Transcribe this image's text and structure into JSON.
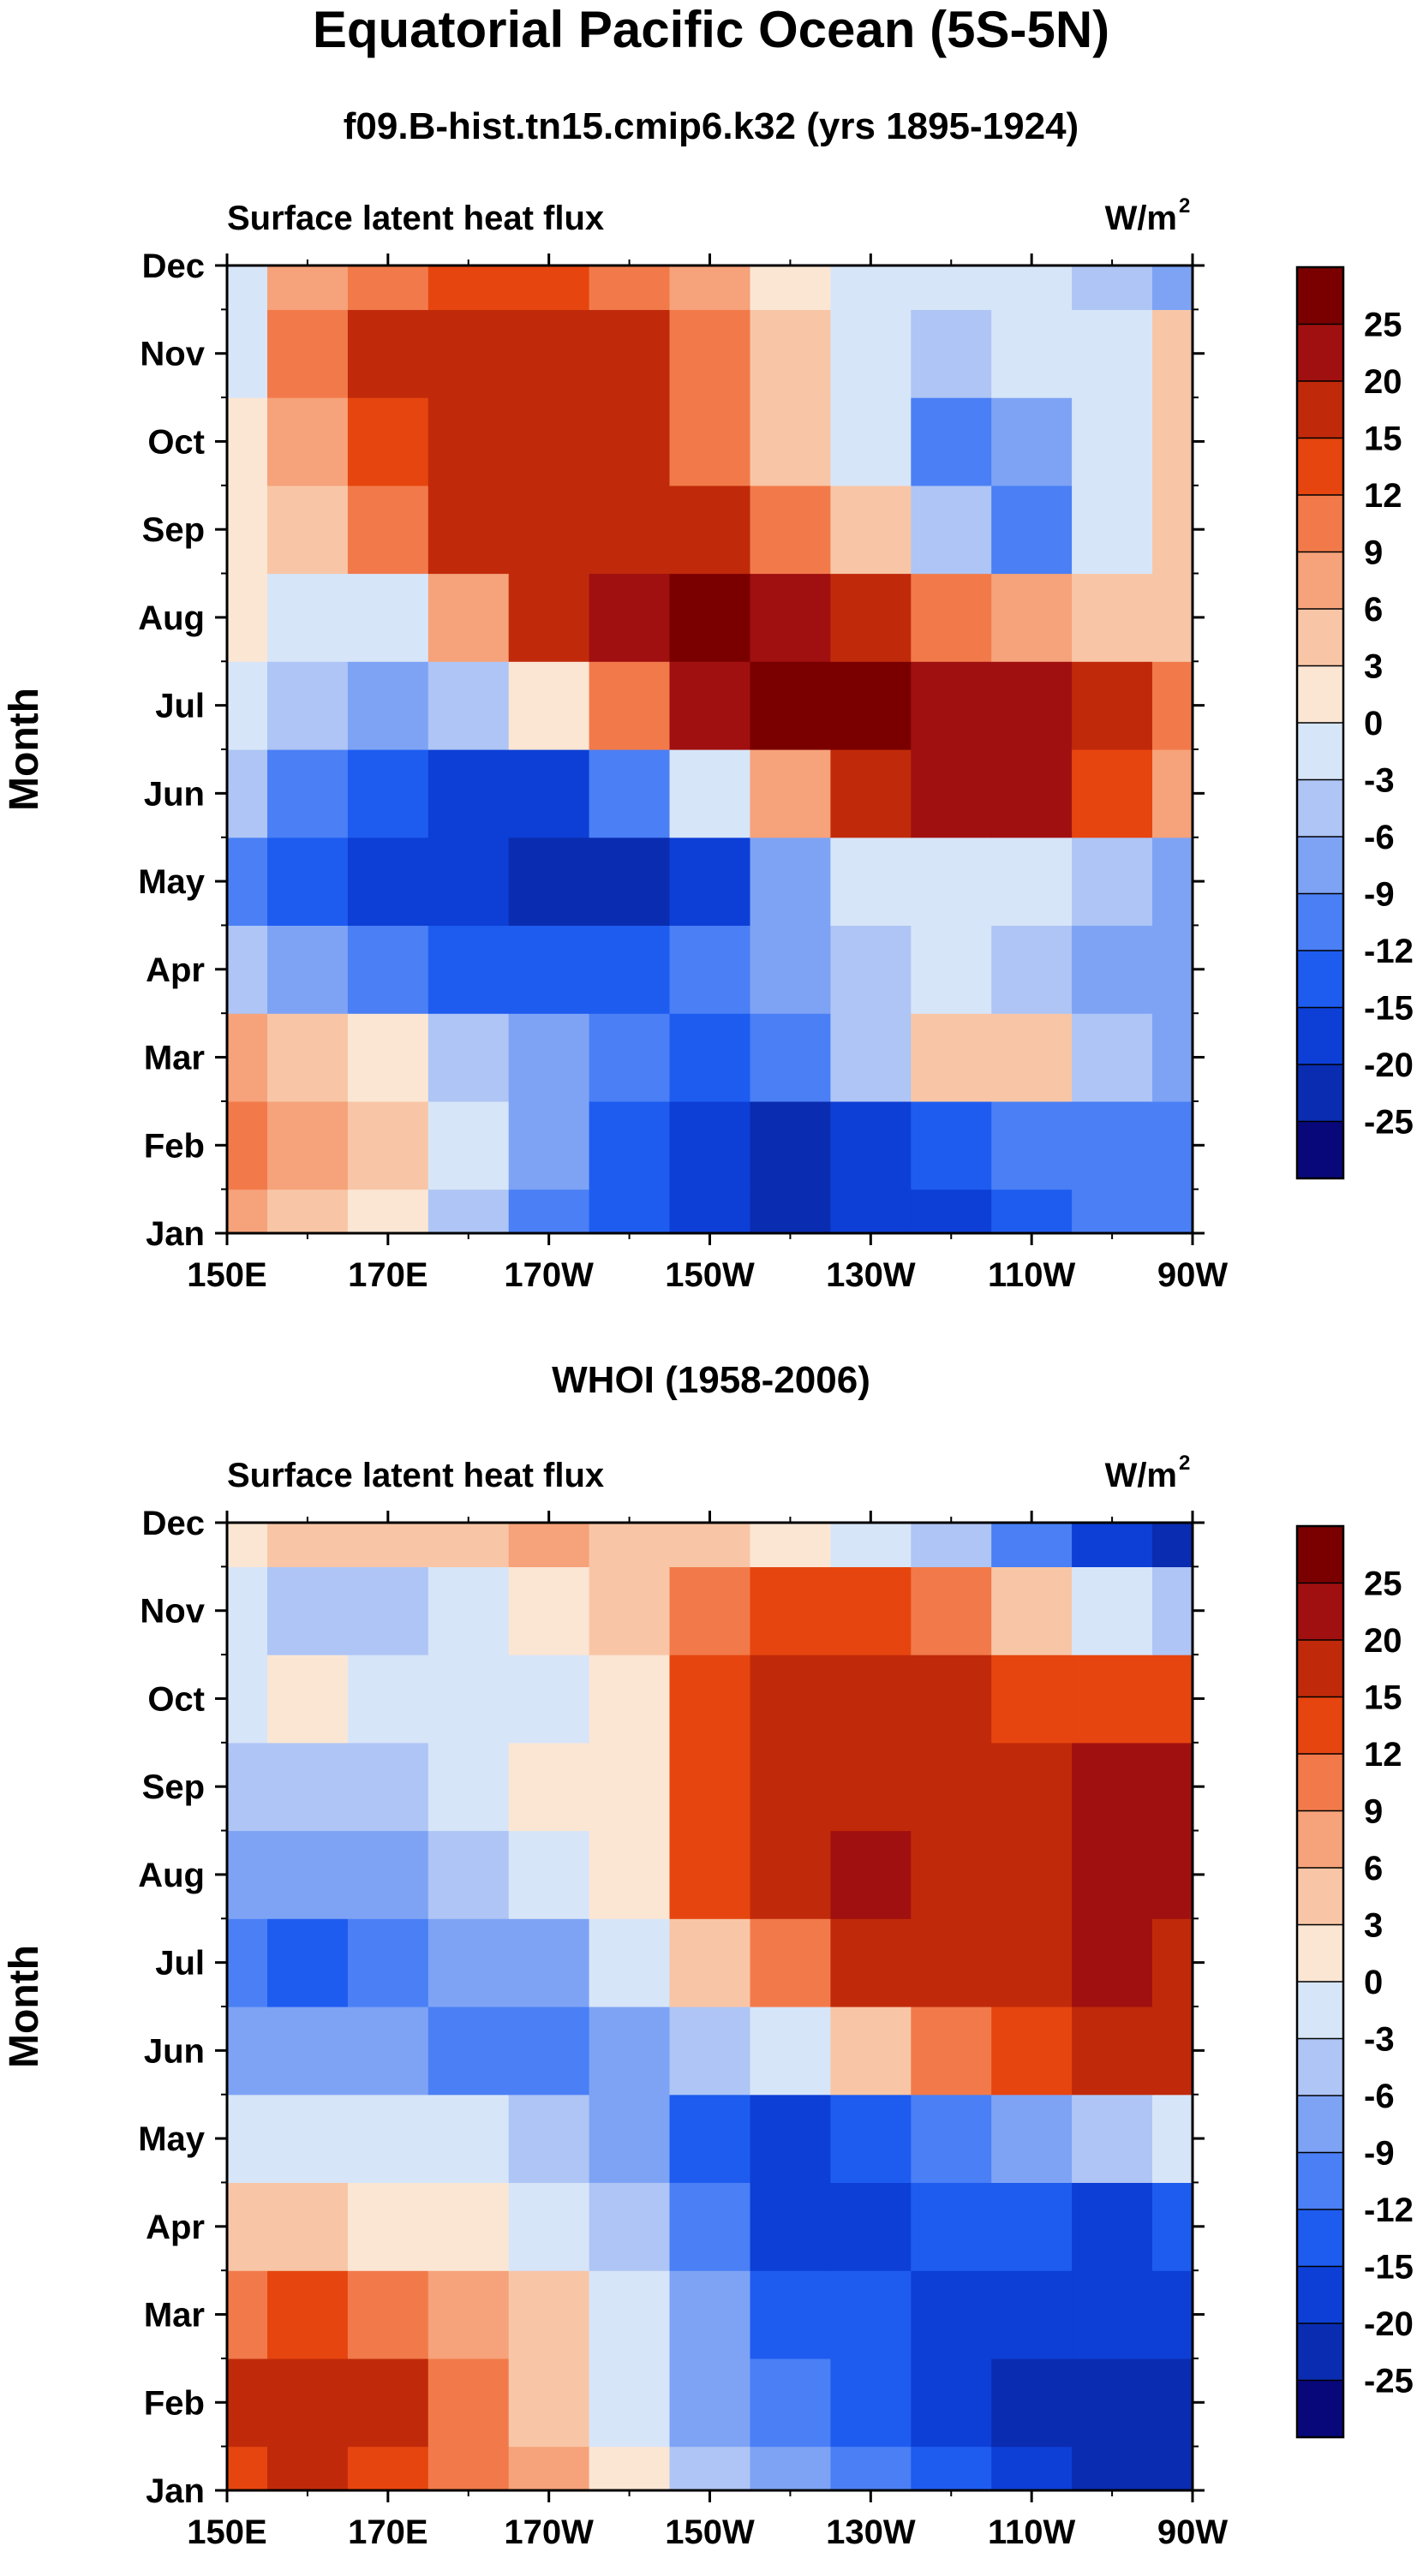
{
  "figure": {
    "title": "Equatorial Pacific Ocean (5S-5N)"
  },
  "colorbar": {
    "levels": [
      -25,
      -20,
      -15,
      -12,
      -9,
      -6,
      -3,
      0,
      3,
      6,
      9,
      12,
      15,
      20,
      25
    ],
    "labels": [
      "25",
      "20",
      "15",
      "12",
      "9",
      "6",
      "3",
      "0",
      "-3",
      "-6",
      "-9",
      "-12",
      "-15",
      "-20",
      "-25"
    ],
    "colors": [
      "#08087a",
      "#0a2cb0",
      "#0d3fd6",
      "#1e5cf0",
      "#4a7ff5",
      "#7ea3f5",
      "#aec5f5",
      "#d7e5f8",
      "#fbe6d4",
      "#f8c6a6",
      "#f6a27a",
      "#f27a4a",
      "#e6450f",
      "#c02a0a",
      "#a01010",
      "#7a0000"
    ]
  },
  "chart_data": [
    {
      "type": "heatmap",
      "title": "f09.B-hist.tn15.cmip6.k32 (yrs 1895-1924)",
      "left_label": "Surface latent heat flux",
      "units_label": "W/m",
      "units_superscript": "2",
      "ylabel": "Month",
      "xlabel": "",
      "x_ticks": [
        "150E",
        "170E",
        "170W",
        "150W",
        "130W",
        "110W",
        "90W"
      ],
      "x_tick_values": [
        150,
        170,
        190,
        210,
        230,
        250,
        270
      ],
      "xlim": [
        150,
        270
      ],
      "y_ticks": [
        "Jan",
        "Feb",
        "Mar",
        "Apr",
        "May",
        "Jun",
        "Jul",
        "Aug",
        "Sep",
        "Oct",
        "Nov",
        "Dec"
      ],
      "x_grid": [
        150,
        160,
        170,
        180,
        190,
        200,
        210,
        220,
        230,
        240,
        250,
        260,
        270
      ],
      "values": [
        [
          6,
          4,
          0,
          -6,
          -12,
          -15,
          -20,
          -22,
          -20,
          -18,
          -15,
          -12,
          -10
        ],
        [
          9,
          6,
          3,
          -3,
          -9,
          -15,
          -20,
          -24,
          -20,
          -15,
          -12,
          -12,
          -10
        ],
        [
          6,
          3,
          0,
          -6,
          -9,
          -12,
          -15,
          -12,
          -6,
          3,
          3,
          -6,
          -9
        ],
        [
          -6,
          -9,
          -12,
          -15,
          -15,
          -15,
          -12,
          -9,
          -6,
          -3,
          -6,
          -9,
          -9
        ],
        [
          -12,
          -15,
          -18,
          -20,
          -24,
          -22,
          -18,
          -9,
          -3,
          -3,
          -3,
          -6,
          -9
        ],
        [
          -6,
          -12,
          -15,
          -18,
          -18,
          -12,
          -3,
          6,
          15,
          20,
          22,
          12,
          6
        ],
        [
          -3,
          -6,
          -9,
          -6,
          0,
          9,
          20,
          25,
          26,
          24,
          20,
          15,
          9
        ],
        [
          0,
          -3,
          -3,
          6,
          15,
          24,
          26,
          22,
          15,
          9,
          6,
          3,
          3
        ],
        [
          0,
          3,
          9,
          15,
          18,
          18,
          15,
          9,
          3,
          -6,
          -12,
          -3,
          3
        ],
        [
          0,
          6,
          12,
          15,
          18,
          15,
          9,
          3,
          -3,
          -12,
          -9,
          -3,
          3
        ],
        [
          -3,
          9,
          15,
          18,
          18,
          15,
          9,
          3,
          -3,
          -6,
          -3,
          -3,
          3
        ],
        [
          -3,
          6,
          9,
          12,
          12,
          9,
          6,
          0,
          -3,
          -3,
          -3,
          -6,
          -9
        ]
      ]
    },
    {
      "type": "heatmap",
      "title": "WHOI (1958-2006)",
      "left_label": "Surface latent heat flux",
      "units_label": "W/m",
      "units_superscript": "2",
      "ylabel": "Month",
      "xlabel": "",
      "x_ticks": [
        "150E",
        "170E",
        "170W",
        "150W",
        "130W",
        "110W",
        "90W"
      ],
      "x_tick_values": [
        150,
        170,
        190,
        210,
        230,
        250,
        270
      ],
      "xlim": [
        150,
        270
      ],
      "y_ticks": [
        "Jan",
        "Feb",
        "Mar",
        "Apr",
        "May",
        "Jun",
        "Jul",
        "Aug",
        "Sep",
        "Oct",
        "Nov",
        "Dec"
      ],
      "x_grid": [
        150,
        160,
        170,
        180,
        190,
        200,
        210,
        220,
        230,
        240,
        250,
        260,
        270
      ],
      "values": [
        [
          12,
          15,
          12,
          9,
          6,
          0,
          -6,
          -9,
          -12,
          -15,
          -18,
          -22,
          -25
        ],
        [
          15,
          18,
          15,
          9,
          3,
          -3,
          -9,
          -12,
          -15,
          -18,
          -22,
          -24,
          -22
        ],
        [
          9,
          12,
          9,
          6,
          3,
          -3,
          -9,
          -15,
          -15,
          -18,
          -18,
          -20,
          -18
        ],
        [
          3,
          3,
          0,
          0,
          -3,
          -6,
          -12,
          -18,
          -18,
          -15,
          -15,
          -18,
          -15
        ],
        [
          -3,
          -3,
          -3,
          -3,
          -6,
          -9,
          -15,
          -18,
          -15,
          -12,
          -9,
          -6,
          -3
        ],
        [
          -9,
          -9,
          -9,
          -12,
          -12,
          -9,
          -6,
          -3,
          3,
          9,
          12,
          15,
          15
        ],
        [
          -12,
          -15,
          -12,
          -9,
          -9,
          -3,
          3,
          9,
          15,
          18,
          18,
          20,
          18
        ],
        [
          -9,
          -9,
          -9,
          -6,
          -3,
          0,
          12,
          18,
          21,
          18,
          18,
          21,
          21
        ],
        [
          -6,
          -6,
          -6,
          -3,
          0,
          0,
          12,
          18,
          18,
          15,
          15,
          21,
          24
        ],
        [
          -3,
          0,
          -3,
          -3,
          -3,
          0,
          12,
          15,
          15,
          15,
          12,
          12,
          12
        ],
        [
          -3,
          -6,
          -6,
          -3,
          0,
          3,
          9,
          12,
          12,
          9,
          3,
          -3,
          -6
        ],
        [
          0,
          3,
          3,
          3,
          6,
          3,
          3,
          0,
          -3,
          -6,
          -12,
          -18,
          -22
        ]
      ]
    }
  ]
}
